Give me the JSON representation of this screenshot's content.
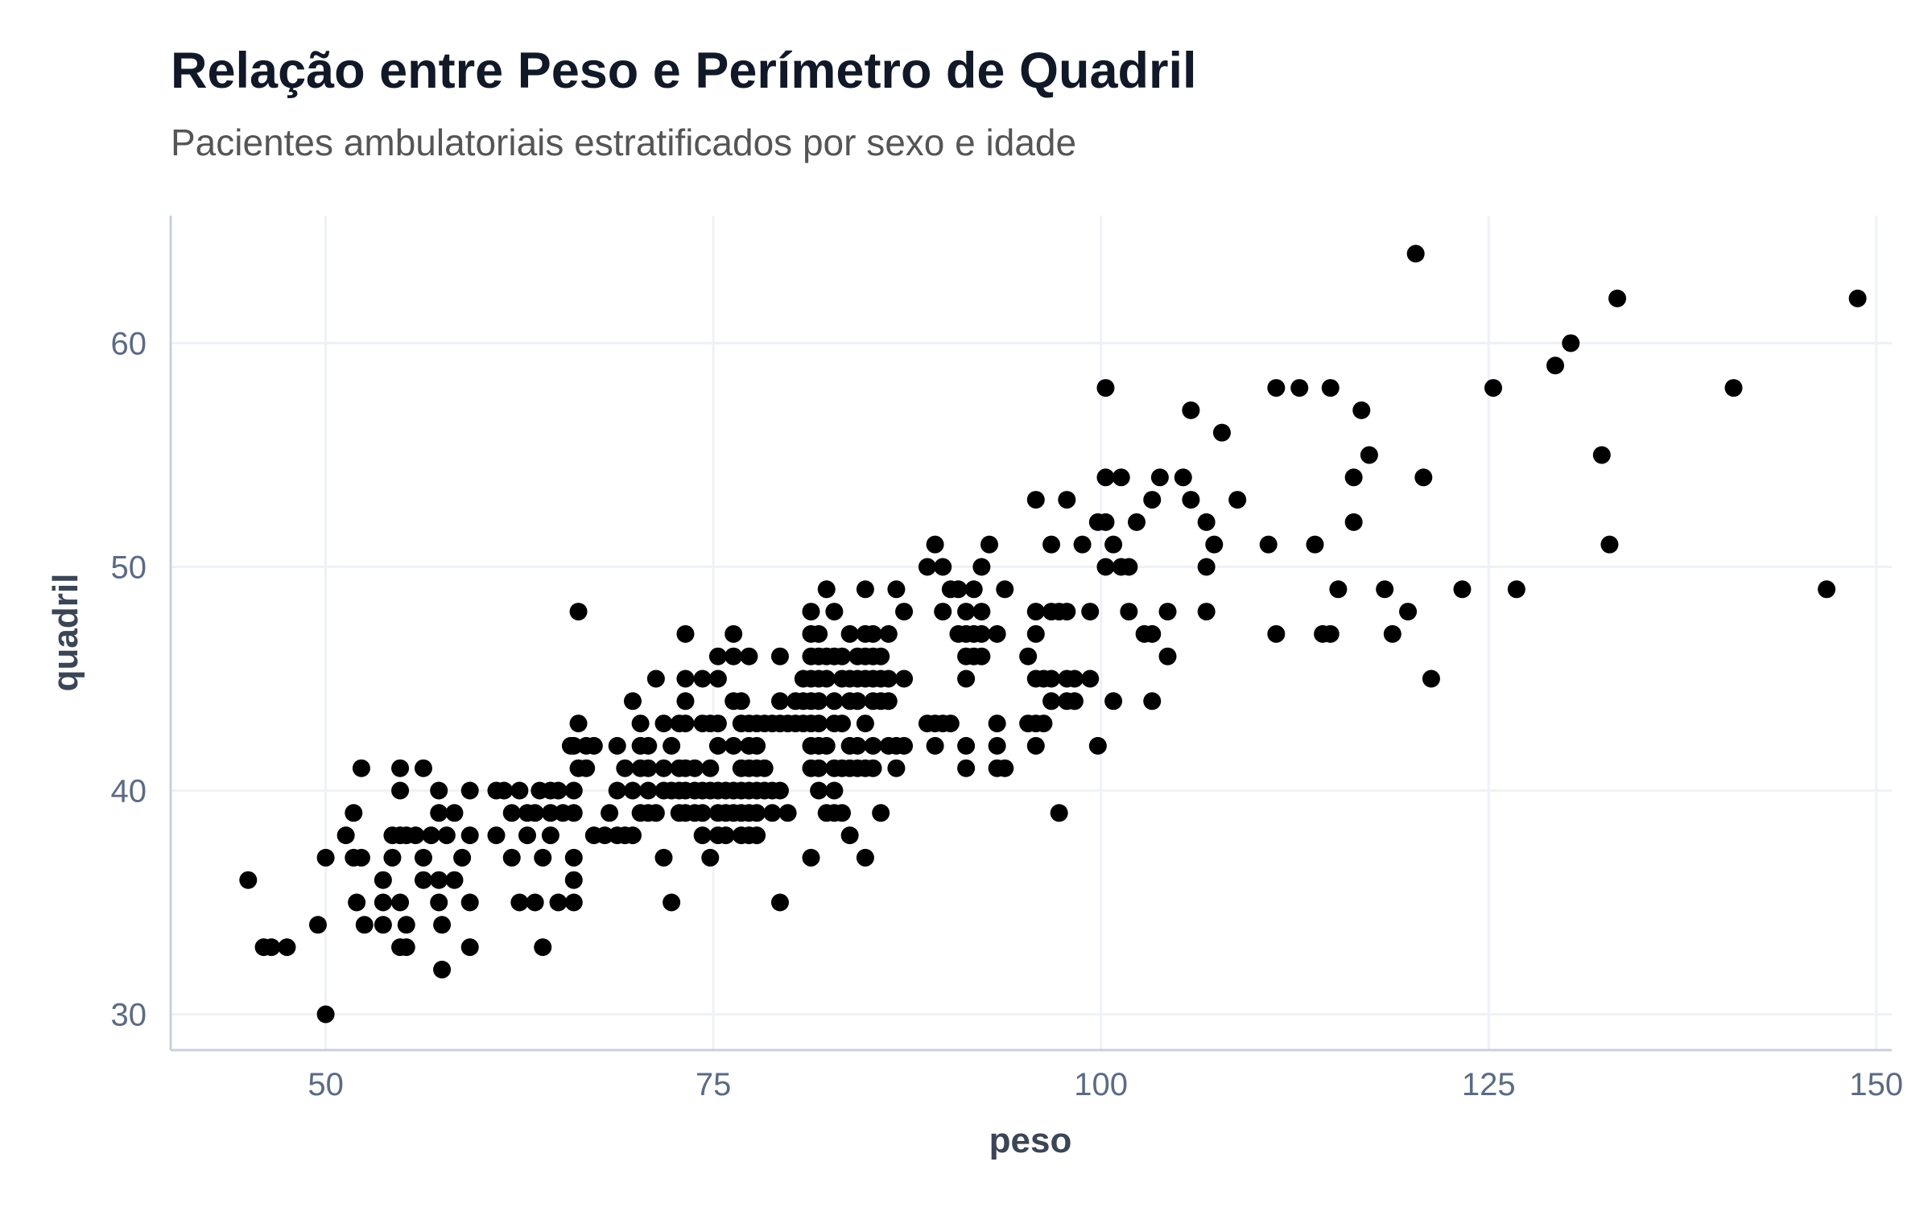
{
  "chart_data": {
    "type": "scatter",
    "title": "Relação entre Peso e Perímetro de Quadril",
    "subtitle": "Pacientes ambulatoriais estratificados por sexo e idade",
    "xlabel": "peso",
    "ylabel": "quadril",
    "xlim": [
      40,
      151
    ],
    "ylim": [
      28.4,
      65.7
    ],
    "xticks": [
      50,
      75,
      100,
      125,
      150
    ],
    "yticks": [
      30,
      40,
      50,
      60
    ],
    "grid": true,
    "point_color": "#000000",
    "grid_color": "#eef1f6",
    "axis_color": "#c8d0dc",
    "points": [
      [
        45,
        36
      ],
      [
        46,
        33
      ],
      [
        46.5,
        33
      ],
      [
        47.5,
        33
      ],
      [
        49.5,
        34
      ],
      [
        50,
        37
      ],
      [
        50,
        30
      ],
      [
        51.3,
        38
      ],
      [
        51.8,
        39
      ],
      [
        51.8,
        37
      ],
      [
        52,
        35
      ],
      [
        52.3,
        41
      ],
      [
        52.3,
        37
      ],
      [
        52.5,
        34
      ],
      [
        53.7,
        36
      ],
      [
        53.7,
        35
      ],
      [
        53.7,
        34
      ],
      [
        54.3,
        38
      ],
      [
        54.3,
        37
      ],
      [
        54.8,
        41
      ],
      [
        54.8,
        40
      ],
      [
        54.8,
        38
      ],
      [
        54.8,
        35
      ],
      [
        54.8,
        33
      ],
      [
        55.2,
        38
      ],
      [
        55.2,
        34
      ],
      [
        55.2,
        33
      ],
      [
        55.8,
        38
      ],
      [
        56.3,
        41
      ],
      [
        56.3,
        37
      ],
      [
        56.3,
        36
      ],
      [
        56.8,
        38
      ],
      [
        57.3,
        40
      ],
      [
        57.3,
        39
      ],
      [
        57.3,
        36
      ],
      [
        57.3,
        35
      ],
      [
        57.5,
        34
      ],
      [
        57.5,
        32
      ],
      [
        57.8,
        38
      ],
      [
        58.3,
        39
      ],
      [
        58.3,
        36
      ],
      [
        58.8,
        37
      ],
      [
        59.3,
        40
      ],
      [
        59.3,
        38
      ],
      [
        59.3,
        35
      ],
      [
        59.3,
        33
      ],
      [
        61,
        40
      ],
      [
        61,
        38
      ],
      [
        61.5,
        40
      ],
      [
        62,
        39
      ],
      [
        62,
        37
      ],
      [
        62.5,
        40
      ],
      [
        62.5,
        35
      ],
      [
        63,
        39
      ],
      [
        63,
        38
      ],
      [
        63.5,
        39
      ],
      [
        63.5,
        35
      ],
      [
        63.8,
        40
      ],
      [
        64,
        37
      ],
      [
        64,
        33
      ],
      [
        64.5,
        40
      ],
      [
        64.5,
        39
      ],
      [
        64.5,
        38
      ],
      [
        65,
        40
      ],
      [
        65,
        35
      ],
      [
        65.3,
        39
      ],
      [
        65.8,
        42
      ],
      [
        66,
        42
      ],
      [
        66,
        40
      ],
      [
        66,
        39
      ],
      [
        66,
        37
      ],
      [
        66,
        36
      ],
      [
        66,
        35
      ],
      [
        66.3,
        48
      ],
      [
        66.3,
        43
      ],
      [
        66.3,
        41
      ],
      [
        66.8,
        42
      ],
      [
        66.8,
        41
      ],
      [
        67.3,
        42
      ],
      [
        67.3,
        38
      ],
      [
        68,
        38
      ],
      [
        68.3,
        39
      ],
      [
        68.8,
        42
      ],
      [
        68.8,
        40
      ],
      [
        68.8,
        38
      ],
      [
        69.3,
        41
      ],
      [
        69.3,
        38
      ],
      [
        69.8,
        44
      ],
      [
        69.8,
        40
      ],
      [
        69.8,
        38
      ],
      [
        70.3,
        43
      ],
      [
        70.3,
        42
      ],
      [
        70.3,
        41
      ],
      [
        70.3,
        39
      ],
      [
        70.8,
        42
      ],
      [
        70.8,
        41
      ],
      [
        70.8,
        40
      ],
      [
        70.8,
        39
      ],
      [
        71.3,
        45
      ],
      [
        71.3,
        39
      ],
      [
        71.8,
        43
      ],
      [
        71.8,
        41
      ],
      [
        71.8,
        40
      ],
      [
        71.8,
        37
      ],
      [
        72.3,
        42
      ],
      [
        72.3,
        40
      ],
      [
        72.3,
        35
      ],
      [
        72.8,
        43
      ],
      [
        72.8,
        41
      ],
      [
        72.8,
        40
      ],
      [
        72.8,
        39
      ],
      [
        73.2,
        47
      ],
      [
        73.2,
        45
      ],
      [
        73.2,
        44
      ],
      [
        73.2,
        43
      ],
      [
        73.2,
        41
      ],
      [
        73.2,
        40
      ],
      [
        73.2,
        39
      ],
      [
        73.8,
        41
      ],
      [
        73.8,
        40
      ],
      [
        73.8,
        39
      ],
      [
        74.3,
        45
      ],
      [
        74.3,
        43
      ],
      [
        74.3,
        40
      ],
      [
        74.3,
        39
      ],
      [
        74.3,
        38
      ],
      [
        74.8,
        43
      ],
      [
        74.8,
        41
      ],
      [
        74.8,
        40
      ],
      [
        74.8,
        37
      ],
      [
        75.3,
        46
      ],
      [
        75.3,
        45
      ],
      [
        75.3,
        43
      ],
      [
        75.3,
        42
      ],
      [
        75.3,
        40
      ],
      [
        75.3,
        39
      ],
      [
        75.3,
        38
      ],
      [
        75.8,
        40
      ],
      [
        75.8,
        39
      ],
      [
        75.8,
        38
      ],
      [
        76.3,
        47
      ],
      [
        76.3,
        46
      ],
      [
        76.3,
        44
      ],
      [
        76.3,
        42
      ],
      [
        76.3,
        40
      ],
      [
        76.3,
        39
      ],
      [
        76.8,
        44
      ],
      [
        76.8,
        43
      ],
      [
        76.8,
        41
      ],
      [
        76.8,
        40
      ],
      [
        76.8,
        39
      ],
      [
        76.8,
        38
      ],
      [
        77.3,
        46
      ],
      [
        77.3,
        43
      ],
      [
        77.3,
        42
      ],
      [
        77.3,
        41
      ],
      [
        77.3,
        40
      ],
      [
        77.3,
        39
      ],
      [
        77.3,
        38
      ],
      [
        77.8,
        43
      ],
      [
        77.8,
        42
      ],
      [
        77.8,
        41
      ],
      [
        77.8,
        40
      ],
      [
        77.8,
        39
      ],
      [
        77.8,
        38
      ],
      [
        78.3,
        43
      ],
      [
        78.3,
        41
      ],
      [
        78.3,
        40
      ],
      [
        78.8,
        43
      ],
      [
        78.8,
        40
      ],
      [
        78.8,
        39
      ],
      [
        79.3,
        46
      ],
      [
        79.3,
        44
      ],
      [
        79.3,
        43
      ],
      [
        79.3,
        40
      ],
      [
        79.3,
        35
      ],
      [
        79.8,
        43
      ],
      [
        79.8,
        39
      ],
      [
        80.3,
        44
      ],
      [
        80.3,
        43
      ],
      [
        80.8,
        45
      ],
      [
        80.8,
        44
      ],
      [
        80.8,
        43
      ],
      [
        81.3,
        48
      ],
      [
        81.3,
        47
      ],
      [
        81.3,
        46
      ],
      [
        81.3,
        45
      ],
      [
        81.3,
        44
      ],
      [
        81.3,
        43
      ],
      [
        81.3,
        42
      ],
      [
        81.3,
        41
      ],
      [
        81.3,
        37
      ],
      [
        81.8,
        47
      ],
      [
        81.8,
        46
      ],
      [
        81.8,
        45
      ],
      [
        81.8,
        44
      ],
      [
        81.8,
        43
      ],
      [
        81.8,
        42
      ],
      [
        81.8,
        41
      ],
      [
        81.8,
        40
      ],
      [
        82.3,
        49
      ],
      [
        82.3,
        46
      ],
      [
        82.3,
        45
      ],
      [
        82.3,
        42
      ],
      [
        82.3,
        39
      ],
      [
        82.8,
        48
      ],
      [
        82.8,
        46
      ],
      [
        82.8,
        44
      ],
      [
        82.8,
        43
      ],
      [
        82.8,
        41
      ],
      [
        82.8,
        40
      ],
      [
        82.8,
        39
      ],
      [
        83.3,
        46
      ],
      [
        83.3,
        45
      ],
      [
        83.3,
        43
      ],
      [
        83.3,
        41
      ],
      [
        83.3,
        39
      ],
      [
        83.8,
        47
      ],
      [
        83.8,
        45
      ],
      [
        83.8,
        44
      ],
      [
        83.8,
        42
      ],
      [
        83.8,
        41
      ],
      [
        83.8,
        38
      ],
      [
        84.3,
        46
      ],
      [
        84.3,
        45
      ],
      [
        84.3,
        44
      ],
      [
        84.3,
        42
      ],
      [
        84.3,
        41
      ],
      [
        84.8,
        49
      ],
      [
        84.8,
        47
      ],
      [
        84.8,
        46
      ],
      [
        84.8,
        45
      ],
      [
        84.8,
        43
      ],
      [
        84.8,
        41
      ],
      [
        84.8,
        37
      ],
      [
        85.3,
        47
      ],
      [
        85.3,
        46
      ],
      [
        85.3,
        45
      ],
      [
        85.3,
        44
      ],
      [
        85.3,
        42
      ],
      [
        85.3,
        41
      ],
      [
        85.8,
        46
      ],
      [
        85.8,
        45
      ],
      [
        85.8,
        44
      ],
      [
        85.8,
        39
      ],
      [
        86.3,
        47
      ],
      [
        86.3,
        45
      ],
      [
        86.3,
        44
      ],
      [
        86.3,
        42
      ],
      [
        86.8,
        49
      ],
      [
        86.8,
        42
      ],
      [
        86.8,
        41
      ],
      [
        87.3,
        48
      ],
      [
        87.3,
        45
      ],
      [
        87.3,
        42
      ],
      [
        88.8,
        50
      ],
      [
        88.8,
        43
      ],
      [
        89.3,
        51
      ],
      [
        89.3,
        43
      ],
      [
        89.3,
        42
      ],
      [
        89.8,
        50
      ],
      [
        89.8,
        48
      ],
      [
        89.8,
        43
      ],
      [
        90.3,
        49
      ],
      [
        90.3,
        43
      ],
      [
        90.8,
        49
      ],
      [
        90.8,
        47
      ],
      [
        91.3,
        48
      ],
      [
        91.3,
        47
      ],
      [
        91.3,
        46
      ],
      [
        91.3,
        45
      ],
      [
        91.3,
        42
      ],
      [
        91.3,
        41
      ],
      [
        91.8,
        49
      ],
      [
        91.8,
        47
      ],
      [
        91.8,
        46
      ],
      [
        92.3,
        50
      ],
      [
        92.3,
        48
      ],
      [
        92.3,
        47
      ],
      [
        92.3,
        46
      ],
      [
        92.8,
        51
      ],
      [
        93.3,
        47
      ],
      [
        93.3,
        43
      ],
      [
        93.3,
        42
      ],
      [
        93.3,
        41
      ],
      [
        93.8,
        49
      ],
      [
        93.8,
        41
      ],
      [
        95.3,
        46
      ],
      [
        95.3,
        43
      ],
      [
        95.8,
        53
      ],
      [
        95.8,
        48
      ],
      [
        95.8,
        47
      ],
      [
        95.8,
        45
      ],
      [
        95.8,
        43
      ],
      [
        95.8,
        42
      ],
      [
        96.3,
        45
      ],
      [
        96.3,
        43
      ],
      [
        96.8,
        51
      ],
      [
        96.8,
        48
      ],
      [
        96.8,
        45
      ],
      [
        96.8,
        44
      ],
      [
        97.3,
        48
      ],
      [
        97.3,
        39
      ],
      [
        97.8,
        53
      ],
      [
        97.8,
        48
      ],
      [
        97.8,
        45
      ],
      [
        97.8,
        44
      ],
      [
        98.3,
        45
      ],
      [
        98.3,
        44
      ],
      [
        98.8,
        51
      ],
      [
        99.3,
        48
      ],
      [
        99.3,
        45
      ],
      [
        99.8,
        52
      ],
      [
        99.8,
        42
      ],
      [
        100.3,
        58
      ],
      [
        100.3,
        54
      ],
      [
        100.3,
        52
      ],
      [
        100.3,
        50
      ],
      [
        100.8,
        51
      ],
      [
        100.8,
        44
      ],
      [
        101.3,
        54
      ],
      [
        101.3,
        50
      ],
      [
        101.8,
        48
      ],
      [
        101.8,
        50
      ],
      [
        102.3,
        52
      ],
      [
        102.8,
        47
      ],
      [
        103.3,
        53
      ],
      [
        103.3,
        47
      ],
      [
        103.3,
        44
      ],
      [
        103.8,
        54
      ],
      [
        104.3,
        48
      ],
      [
        104.3,
        46
      ],
      [
        105.3,
        54
      ],
      [
        105.8,
        57
      ],
      [
        105.8,
        53
      ],
      [
        106.8,
        52
      ],
      [
        106.8,
        50
      ],
      [
        106.8,
        48
      ],
      [
        107.3,
        51
      ],
      [
        107.8,
        56
      ],
      [
        108.8,
        53
      ],
      [
        110.8,
        51
      ],
      [
        111.3,
        58
      ],
      [
        111.3,
        47
      ],
      [
        112.8,
        58
      ],
      [
        113.8,
        51
      ],
      [
        114.3,
        47
      ],
      [
        114.8,
        58
      ],
      [
        114.8,
        47
      ],
      [
        115.3,
        49
      ],
      [
        116.3,
        54
      ],
      [
        116.3,
        52
      ],
      [
        116.8,
        57
      ],
      [
        117.3,
        55
      ],
      [
        118.3,
        49
      ],
      [
        118.8,
        47
      ],
      [
        119.8,
        48
      ],
      [
        120.3,
        64
      ],
      [
        120.8,
        54
      ],
      [
        121.3,
        45
      ],
      [
        123.3,
        49
      ],
      [
        125.3,
        58
      ],
      [
        126.8,
        49
      ],
      [
        129.3,
        59
      ],
      [
        130.3,
        60
      ],
      [
        132.3,
        55
      ],
      [
        132.8,
        51
      ],
      [
        133.3,
        62
      ],
      [
        140.8,
        58
      ],
      [
        146.8,
        49
      ],
      [
        148.8,
        62
      ]
    ]
  }
}
